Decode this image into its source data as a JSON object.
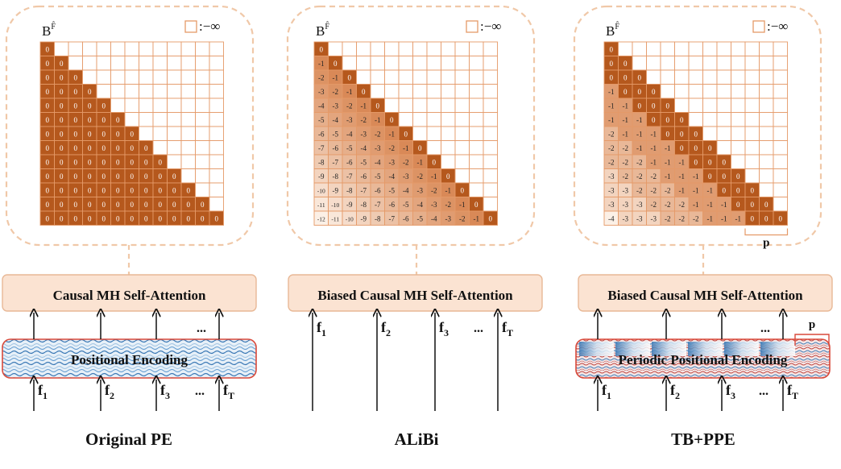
{
  "matrix_label": "B",
  "matrix_label_sup": "F̂",
  "legend_text": ":−∞",
  "panels": [
    {
      "id": "original-pe",
      "caption": "Original PE",
      "attention_label": "Causal MH Self-Attention",
      "encoding_label": "Positional Encoding",
      "matrix_type": "zeros",
      "inputs": [
        "f",
        "f",
        "f",
        "f"
      ],
      "input_subs": [
        "1",
        "2",
        "3",
        "T"
      ],
      "ellipsis": "...",
      "period_label": ""
    },
    {
      "id": "alibi",
      "caption": "ALiBi",
      "attention_label": "Biased Causal MH Self-Attention",
      "encoding_label": "",
      "matrix_type": "alibi",
      "inputs": [
        "f",
        "f",
        "f",
        "f"
      ],
      "input_subs": [
        "1",
        "2",
        "3",
        "T"
      ],
      "ellipsis": "...",
      "period_label": ""
    },
    {
      "id": "tb-ppe",
      "caption": "TB+PPE",
      "attention_label": "Biased Causal MH Self-Attention",
      "encoding_label": "Periodic Positional Encoding",
      "matrix_type": "tb",
      "inputs": [
        "f",
        "f",
        "f",
        "f"
      ],
      "input_subs": [
        "1",
        "2",
        "3",
        "T"
      ],
      "ellipsis": "...",
      "period_label": "p"
    }
  ],
  "matrices": {
    "zeros": [
      [
        "0"
      ],
      [
        "0",
        "0"
      ],
      [
        "0",
        "0",
        "0"
      ],
      [
        "0",
        "0",
        "0",
        "0"
      ],
      [
        "0",
        "0",
        "0",
        "0",
        "0"
      ],
      [
        "0",
        "0",
        "0",
        "0",
        "0",
        "0"
      ],
      [
        "0",
        "0",
        "0",
        "0",
        "0",
        "0",
        "0"
      ],
      [
        "0",
        "0",
        "0",
        "0",
        "0",
        "0",
        "0",
        "0"
      ],
      [
        "0",
        "0",
        "0",
        "0",
        "0",
        "0",
        "0",
        "0",
        "0"
      ],
      [
        "0",
        "0",
        "0",
        "0",
        "0",
        "0",
        "0",
        "0",
        "0",
        "0"
      ],
      [
        "0",
        "0",
        "0",
        "0",
        "0",
        "0",
        "0",
        "0",
        "0",
        "0",
        "0"
      ],
      [
        "0",
        "0",
        "0",
        "0",
        "0",
        "0",
        "0",
        "0",
        "0",
        "0",
        "0",
        "0"
      ],
      [
        "0",
        "0",
        "0",
        "0",
        "0",
        "0",
        "0",
        "0",
        "0",
        "0",
        "0",
        "0",
        "0"
      ]
    ],
    "alibi": [
      [
        "0"
      ],
      [
        "-1",
        "0"
      ],
      [
        "-2",
        "-1",
        "0"
      ],
      [
        "-3",
        "-2",
        "-1",
        "0"
      ],
      [
        "-4",
        "-3",
        "-2",
        "-1",
        "0"
      ],
      [
        "-5",
        "-4",
        "-3",
        "-2",
        "-1",
        "0"
      ],
      [
        "-6",
        "-5",
        "-4",
        "-3",
        "-2",
        "-1",
        "0"
      ],
      [
        "-7",
        "-6",
        "-5",
        "-4",
        "-3",
        "-2",
        "-1",
        "0"
      ],
      [
        "-8",
        "-7",
        "-6",
        "-5",
        "-4",
        "-3",
        "-2",
        "-1",
        "0"
      ],
      [
        "-9",
        "-8",
        "-7",
        "-6",
        "-5",
        "-4",
        "-3",
        "-2",
        "-1",
        "0"
      ],
      [
        "-10",
        "-9",
        "-8",
        "-7",
        "-6",
        "-5",
        "-4",
        "-3",
        "-2",
        "-1",
        "0"
      ],
      [
        "-11",
        "-10",
        "-9",
        "-8",
        "-7",
        "-6",
        "-5",
        "-4",
        "-3",
        "-2",
        "-1",
        "0"
      ],
      [
        "-12",
        "-11",
        "-10",
        "-9",
        "-8",
        "-7",
        "-6",
        "-5",
        "-4",
        "-3",
        "-2",
        "-1",
        "0"
      ]
    ],
    "tb": [
      [
        "0"
      ],
      [
        "0",
        "0"
      ],
      [
        "0",
        "0",
        "0"
      ],
      [
        "-1",
        "0",
        "0",
        "0"
      ],
      [
        "-1",
        "-1",
        "0",
        "0",
        "0"
      ],
      [
        "-1",
        "-1",
        "-1",
        "0",
        "0",
        "0"
      ],
      [
        "-2",
        "-1",
        "-1",
        "-1",
        "0",
        "0",
        "0"
      ],
      [
        "-2",
        "-2",
        "-1",
        "-1",
        "-1",
        "0",
        "0",
        "0"
      ],
      [
        "-2",
        "-2",
        "-2",
        "-1",
        "-1",
        "-1",
        "0",
        "0",
        "0"
      ],
      [
        "-3",
        "-2",
        "-2",
        "-2",
        "-1",
        "-1",
        "-1",
        "0",
        "0",
        "0"
      ],
      [
        "-3",
        "-3",
        "-2",
        "-2",
        "-2",
        "-1",
        "-1",
        "-1",
        "0",
        "0",
        "0"
      ],
      [
        "-3",
        "-3",
        "-3",
        "-2",
        "-2",
        "-2",
        "-1",
        "-1",
        "-1",
        "0",
        "0",
        "0"
      ],
      [
        "-4",
        "-3",
        "-3",
        "-3",
        "-2",
        "-2",
        "-2",
        "-1",
        "-1",
        "-1",
        "0",
        "0",
        "0"
      ]
    ]
  },
  "colors": {
    "dashed_border": "#f0c8a8",
    "attention_fill": "#fbe3d2",
    "attention_stroke": "#e8b896",
    "cell_dark": "#b5581d",
    "cell_border": "#e59a68",
    "cell_white": "#ffffff",
    "encoding_stroke": "#d9493a",
    "brace": "#d9493a"
  }
}
